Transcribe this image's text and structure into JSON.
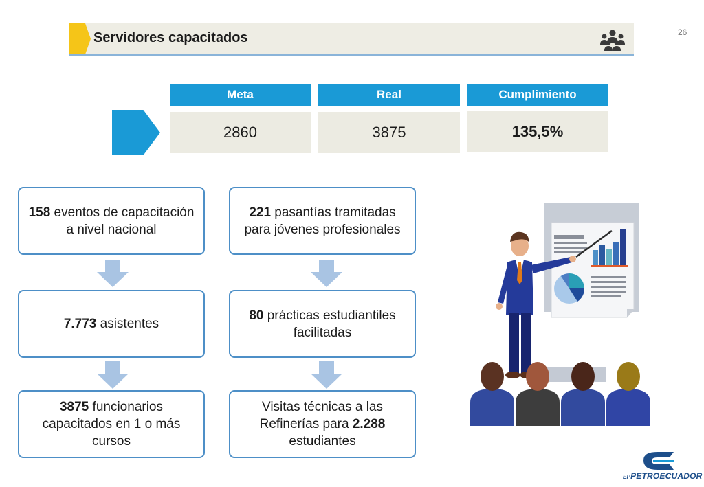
{
  "header": {
    "title": "Servidores capacitados",
    "page_number": "26",
    "icon": "group-icon"
  },
  "kpi": {
    "columns": [
      {
        "label": "Meta",
        "value": "2860"
      },
      {
        "label": "Real",
        "value": "3875"
      },
      {
        "label": "Cumplimiento",
        "value": "135,5%"
      }
    ]
  },
  "flow_left": [
    {
      "bold": "158",
      "text": " eventos de capacitación a nivel nacional"
    },
    {
      "bold": "7.773",
      "text": " asistentes"
    },
    {
      "bold": "3875",
      "text": " funcionarios capacitados en 1 o más cursos"
    }
  ],
  "flow_right": [
    {
      "bold": "221",
      "text": " pasantías tramitadas para jóvenes profesionales"
    },
    {
      "bold": "80",
      "text": " prácticas estudiantiles facilitadas"
    },
    {
      "pre": "Visitas técnicas a las Refinerías para ",
      "bold": "2.288",
      "text": " estudiantes"
    }
  ],
  "logo": {
    "text": "PETROECUADOR",
    "prefix": "EP"
  },
  "colors": {
    "accent_blue": "#1a9ad6",
    "title_yellow": "#f5c518",
    "box_border": "#4d8fc7",
    "arrow_blue": "#a9c4e3"
  }
}
